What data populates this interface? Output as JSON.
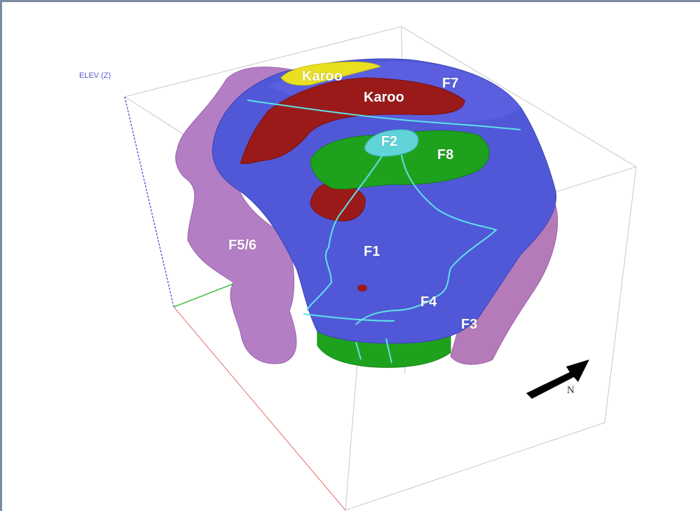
{
  "axis": {
    "elevation_label": "ELEV (Z)"
  },
  "north_label": "N",
  "units": [
    {
      "id": "karoo_yellow",
      "label": "Karoo",
      "color": "#e8e020"
    },
    {
      "id": "karoo_red",
      "label": "Karoo",
      "color": "#9a1a1a"
    },
    {
      "id": "f7",
      "label": "F7",
      "color": "#5b5fe0"
    },
    {
      "id": "f2",
      "label": "F2",
      "color": "#5fd3d8"
    },
    {
      "id": "f8",
      "label": "F8",
      "color": "#1ea21e"
    },
    {
      "id": "f1",
      "label": "F1",
      "color": "#5058d8"
    },
    {
      "id": "f4",
      "label": "F4",
      "color": "#5058d8"
    },
    {
      "id": "f3",
      "label": "F3",
      "color": "#b57ab8"
    },
    {
      "id": "f56",
      "label": "F5/6",
      "color": "#b47ec4"
    }
  ],
  "colors": {
    "fault_lines": "#5fe0e8",
    "bounding_box": "#c8c8c8",
    "axis_z": "#6060e0",
    "axis_x": "#e07070",
    "axis_y": "#40c040",
    "north_arrow": "#000000"
  }
}
